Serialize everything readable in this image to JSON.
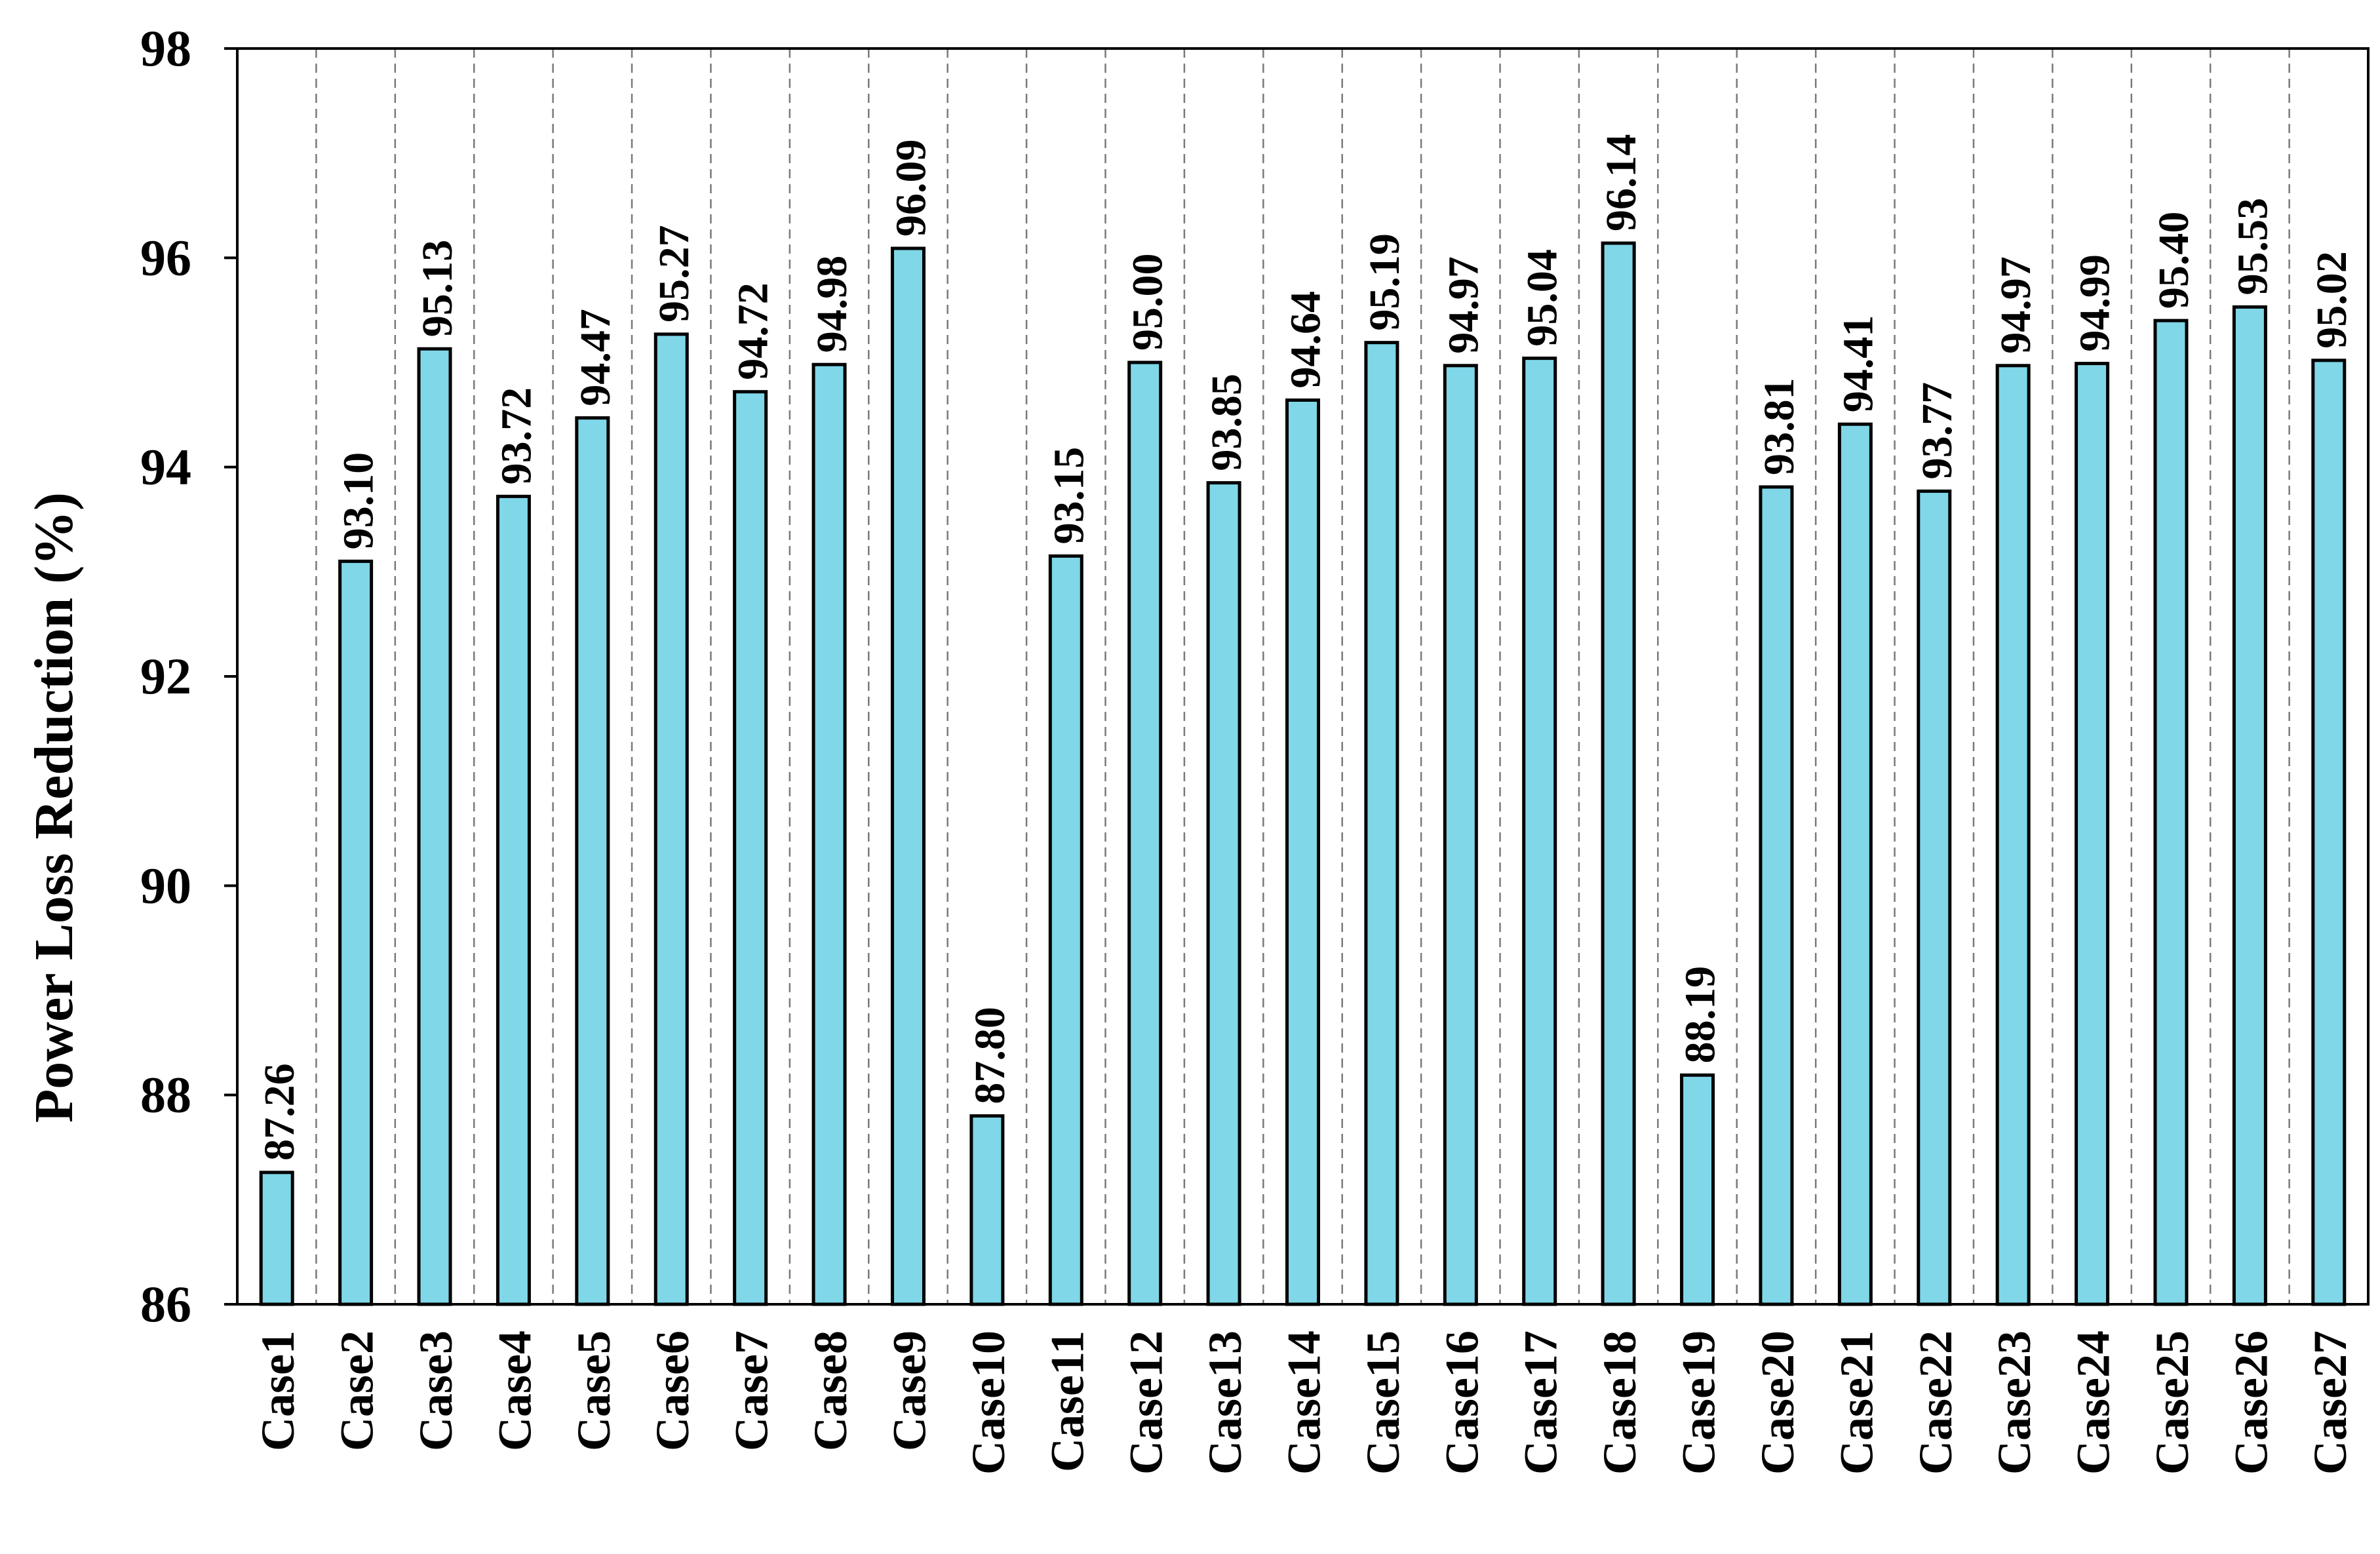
{
  "chart_data": {
    "type": "bar",
    "title": "",
    "xlabel": "",
    "ylabel": "Power Loss Reduction (%)",
    "ylim": [
      86,
      98
    ],
    "yticks": [
      86,
      88,
      90,
      92,
      94,
      96,
      98
    ],
    "grid": "vertical dashed lines between categories",
    "bar_color": "#7fd7e8",
    "bar_edge_color": "#000000",
    "categories": [
      "Case1",
      "Case2",
      "Case3",
      "Case4",
      "Case5",
      "Case6",
      "Case7",
      "Case8",
      "Case9",
      "Case10",
      "Case11",
      "Case12",
      "Case13",
      "Case14",
      "Case15",
      "Case16",
      "Case17",
      "Case18",
      "Case19",
      "Case20",
      "Case21",
      "Case22",
      "Case23",
      "Case24",
      "Case25",
      "Case26",
      "Case27"
    ],
    "values": [
      87.26,
      93.1,
      95.13,
      93.72,
      94.47,
      95.27,
      94.72,
      94.98,
      96.09,
      87.8,
      93.15,
      95.0,
      93.85,
      94.64,
      95.19,
      94.97,
      95.04,
      96.14,
      88.19,
      93.81,
      94.41,
      93.77,
      94.97,
      94.99,
      95.4,
      95.53,
      95.02
    ],
    "labels": [
      "87.26",
      "93.10",
      "95.13",
      "93.72",
      "94.47",
      "95.27",
      "94.72",
      "94.98",
      "96.09",
      "87.80",
      "93.15",
      "95.00",
      "93.85",
      "94.64",
      "95.19",
      "94.97",
      "95.04",
      "96.14",
      "88.19",
      "93.81",
      "94.41",
      "93.77",
      "94.97",
      "94.99",
      "95.40",
      "95.53",
      "95.02"
    ]
  }
}
